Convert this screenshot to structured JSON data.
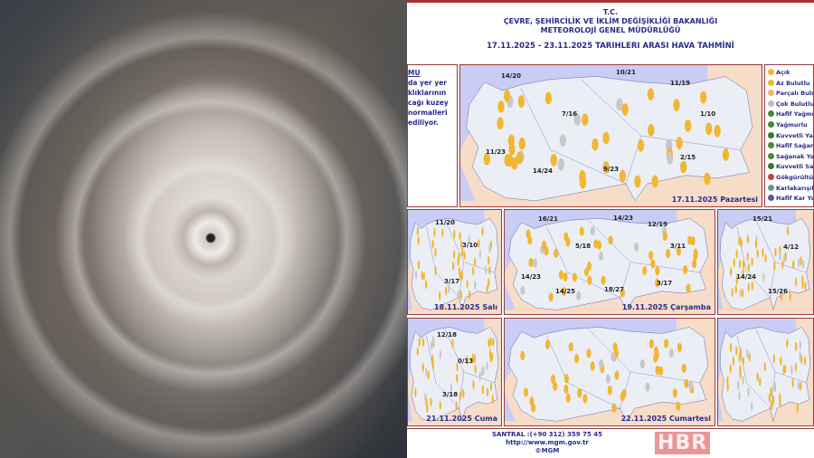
{
  "header": {
    "line1": "T.C.",
    "line2": "ÇEVRE, ŞEHİRCİLİK VE İKLİM DEĞİŞİKLİĞİ BAKANLIĞI",
    "line3": "METEOROLOJİ GENEL MÜDÜRLÜĞÜ",
    "dates": "17.11.2025  -  23.11.2025   TARIHLERI ARASI HAVA TAHMİNİ"
  },
  "note": {
    "title": "MU",
    "lines": [
      "da yer yer",
      "klıklarının",
      "cağı kuzey",
      "normalleri",
      "ediliyor."
    ]
  },
  "legend": [
    {
      "label": "Açık",
      "color": "#f2b630"
    },
    {
      "label": "Az Bulutlu",
      "color": "#f2b630"
    },
    {
      "label": "Parçalı Bulutlu",
      "color": "#e8b870"
    },
    {
      "label": "Çok Bulutlu",
      "color": "#bbbbbb"
    },
    {
      "label": "Hafif Yağmurlu",
      "color": "#4a8a3a"
    },
    {
      "label": "Yağmurlu",
      "color": "#4a8a3a"
    },
    {
      "label": "Kuvvetli Yağmurlu",
      "color": "#3a7a2a"
    },
    {
      "label": "Hafif Sağanak Yağışlı",
      "color": "#4a8a3a"
    },
    {
      "label": "Sağanak Yağışlı",
      "color": "#4a8a3a"
    },
    {
      "label": "Kuvvetli Sağanak",
      "color": "#3a7a2a"
    },
    {
      "label": "Gökgürültülü",
      "color": "#c04040"
    },
    {
      "label": "Karlakarışık Yağmur",
      "color": "#6a9a8a"
    },
    {
      "label": "Hafif Kar Yağışlı",
      "color": "#5a5a9a"
    }
  ],
  "maps": {
    "mon": {
      "date": "17.11.2025 Pazartesi",
      "temps": [
        "14/20",
        "10/21",
        "11/19",
        "7/16",
        "1/10",
        "11/23",
        "14/24",
        "9/23",
        "2/15"
      ]
    },
    "tue": {
      "date": "18.11.2025 Salı",
      "temps": [
        "11/20",
        "3/10",
        "3/17"
      ]
    },
    "wed": {
      "date": "19.11.2025 Çarşamba",
      "temps": [
        "16/21",
        "14/23",
        "12/19",
        "5/18",
        "3/11",
        "14/23",
        "14/25",
        "18/27",
        "3/17"
      ]
    },
    "thu": {
      "temps": [
        "15/21",
        "4/12",
        "14/24",
        "15/26"
      ]
    },
    "fri": {
      "date": "21.11.2025 Cuma",
      "temps": [
        "12/18",
        "0/13",
        "3/18"
      ]
    },
    "sat": {
      "date": "22.11.2025 Cumartesi"
    },
    "sun": {}
  },
  "footer": {
    "phone": "SANTRAL :(+90 312) 359 75 45",
    "url": "http://www.mgm.gov.tr",
    "copyright": "©MGM"
  },
  "watermark": "HBR .com.tr",
  "colors": {
    "sea": "#c9ccf4",
    "land": "#eceef6",
    "bg": "#f7dcc8",
    "border": "#9a3a3a",
    "title": "#2a2a8a"
  }
}
